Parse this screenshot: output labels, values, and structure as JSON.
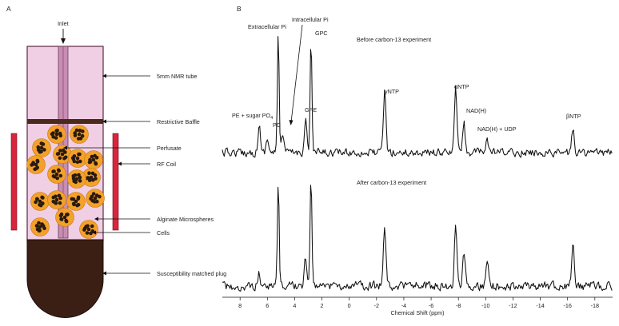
{
  "panel_a": {
    "letter": "A",
    "labels": {
      "inlet": "Inlet",
      "nmr_tube": "5mm NMR tube",
      "baffle": "Restrictive Baffle",
      "perfusate": "Perfusate",
      "rf_coil": "RF Coil",
      "microspheres": "Alginate Microspheres",
      "cells": "Cells",
      "plug": "Susceptibility matched plug"
    },
    "colors": {
      "tube_fill": "#f0cfe4",
      "inlet_fill": "#c98db2",
      "plug_fill": "#3b1f14",
      "coil": "#d7263d",
      "bead_orange": "#f4a12a",
      "bead_dots": "#2a1a10"
    }
  },
  "panel_b": {
    "letter": "B",
    "top_title": "Before carbon-13 experiment",
    "bottom_title": "After carbon-13 experiment",
    "peak_labels": {
      "extracellular_pi": "Extracellular Pi",
      "intracellular_pi": "Intracellular Pi",
      "gpc": "GPC",
      "gpe": "GPE",
      "pe_sugar": "PE + sugar PO",
      "pe_sugar_sub": "4",
      "pc": "PC",
      "gamma_ntp": "γNTP",
      "alpha_ntp": "αNTP",
      "nadh": "NAD(H)",
      "nadh_udp": "NAD(H) + UDP",
      "beta_ntp": "βNTP"
    },
    "xlabel": "Chemical Shift (ppm)"
  },
  "chart_data": {
    "type": "line",
    "xlabel": "Chemical Shift (ppm)",
    "x_ticks": [
      "8",
      "6",
      "4",
      "2",
      "0",
      "-2",
      "-4",
      "-6",
      "-8",
      "-10",
      "-12",
      "-14",
      "-16",
      "-18"
    ],
    "xlim": [
      9.3,
      -19.3
    ],
    "series": [
      {
        "name": "Before carbon-13 experiment",
        "peaks_ppm": [
          {
            "label": "PE + sugar PO4",
            "x": 6.6,
            "height": 0.22
          },
          {
            "label": "PC",
            "x": 6.0,
            "height": 0.12
          },
          {
            "label": "Extracellular Pi",
            "x": 5.2,
            "height": 1.0
          },
          {
            "label": "Intracellular Pi",
            "x": 4.9,
            "height": 0.15
          },
          {
            "label": "GPE",
            "x": 3.2,
            "height": 0.28
          },
          {
            "label": "GPC",
            "x": 2.8,
            "height": 0.95
          },
          {
            "label": "γNTP",
            "x": -2.6,
            "height": 0.52
          },
          {
            "label": "αNTP",
            "x": -7.8,
            "height": 0.54
          },
          {
            "label": "NAD(H)",
            "x": -8.4,
            "height": 0.25
          },
          {
            "label": "NAD(H) + UDP",
            "x": -10.1,
            "height": 0.12
          },
          {
            "label": "βNTP",
            "x": -16.4,
            "height": 0.2
          }
        ]
      },
      {
        "name": "After carbon-13 experiment",
        "peaks_ppm": [
          {
            "label": "PE + sugar PO4",
            "x": 6.6,
            "height": 0.1
          },
          {
            "label": "Extracellular Pi",
            "x": 5.2,
            "height": 0.85
          },
          {
            "label": "GPE",
            "x": 3.2,
            "height": 0.22
          },
          {
            "label": "GPC",
            "x": 2.8,
            "height": 0.93
          },
          {
            "label": "γNTP",
            "x": -2.6,
            "height": 0.5
          },
          {
            "label": "αNTP",
            "x": -7.8,
            "height": 0.52
          },
          {
            "label": "NAD(H)",
            "x": -8.4,
            "height": 0.3
          },
          {
            "label": "NAD(H) + UDP",
            "x": -10.1,
            "height": 0.22
          },
          {
            "label": "βNTP",
            "x": -16.4,
            "height": 0.33
          }
        ]
      }
    ]
  }
}
